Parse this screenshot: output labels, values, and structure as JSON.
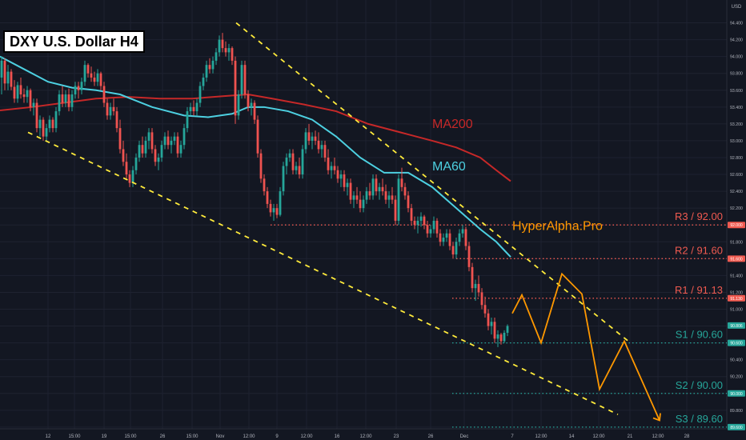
{
  "chart_data": {
    "type": "candlestick",
    "title": "DXY U.S. Dollar H4",
    "currency": "USD",
    "brand": "HyperAlpha.Pro",
    "y_range": [
      89.58,
      94.5
    ],
    "y_ticks": [
      "94.400",
      "94.200",
      "94.000",
      "93.800",
      "93.600",
      "93.400",
      "93.200",
      "93.000",
      "92.800",
      "92.600",
      "92.400",
      "92.200",
      "92.000",
      "91.800",
      "91.600",
      "91.400",
      "91.200",
      "91.000",
      "90.800",
      "90.600",
      "90.400",
      "90.200",
      "90.000",
      "89.800",
      "89.600"
    ],
    "x_labels": [
      "12",
      "15:00",
      "19",
      "15:00",
      "26",
      "15:00",
      "Nov",
      "12:00",
      "9",
      "12:00",
      "16",
      "12:00",
      "23",
      "26",
      "Dec",
      "7",
      "12:00",
      "14",
      "12:00",
      "21",
      "12:00",
      "28"
    ],
    "current_price": "90.806",
    "moving_averages": [
      {
        "name": "MA200",
        "color": "#c62828",
        "points": [
          [
            0,
            93.36
          ],
          [
            40,
            93.4
          ],
          [
            80,
            93.45
          ],
          [
            120,
            93.5
          ],
          [
            160,
            93.52
          ],
          [
            200,
            93.5
          ],
          [
            240,
            93.5
          ],
          [
            280,
            93.53
          ],
          [
            310,
            93.55
          ],
          [
            340,
            93.5
          ],
          [
            380,
            93.43
          ],
          [
            420,
            93.35
          ],
          [
            460,
            93.2
          ],
          [
            500,
            93.1
          ],
          [
            540,
            93.0
          ],
          [
            570,
            92.92
          ],
          [
            600,
            92.8
          ],
          [
            620,
            92.65
          ],
          [
            638,
            92.52
          ]
        ]
      },
      {
        "name": "MA60",
        "color": "#4dd0e1",
        "points": [
          [
            0,
            94.0
          ],
          [
            30,
            93.85
          ],
          [
            60,
            93.7
          ],
          [
            90,
            93.63
          ],
          [
            120,
            93.6
          ],
          [
            150,
            93.55
          ],
          [
            190,
            93.4
          ],
          [
            230,
            93.3
          ],
          [
            260,
            93.28
          ],
          [
            290,
            93.32
          ],
          [
            310,
            93.4
          ],
          [
            330,
            93.4
          ],
          [
            360,
            93.35
          ],
          [
            390,
            93.25
          ],
          [
            420,
            93.05
          ],
          [
            450,
            92.8
          ],
          [
            480,
            92.62
          ],
          [
            510,
            92.62
          ],
          [
            540,
            92.45
          ],
          [
            570,
            92.2
          ],
          [
            600,
            91.95
          ],
          [
            620,
            91.8
          ],
          [
            638,
            91.62
          ]
        ]
      }
    ],
    "levels": [
      {
        "label": "R3 / 92.00",
        "value": 92.0,
        "color": "#f05a50",
        "tag": "92.000",
        "x_start": 338
      },
      {
        "label": "R2 / 91.60",
        "value": 91.6,
        "color": "#f05a50",
        "tag": "91.600",
        "x_start": 570
      },
      {
        "label": "R1 / 91.13",
        "value": 91.13,
        "color": "#f05a50",
        "tag": "91.130",
        "x_start": 565
      },
      {
        "label": "S1 / 90.60",
        "value": 90.6,
        "color": "#26a69a",
        "tag": "90.600",
        "x_start": 565
      },
      {
        "label": "S2 / 90.00",
        "value": 90.0,
        "color": "#26a69a",
        "tag": "90.000",
        "x_start": 565
      },
      {
        "label": "S3 / 89.60",
        "value": 89.6,
        "color": "#26a69a",
        "tag": "89.600",
        "x_start": 565
      }
    ],
    "channel_lines": [
      {
        "from": [
          295,
          94.4
        ],
        "to": [
          785,
          90.62
        ]
      },
      {
        "from": [
          35,
          93.1
        ],
        "to": [
          772,
          89.75
        ]
      }
    ],
    "projection": [
      [
        640,
        90.95
      ],
      [
        652,
        91.17
      ],
      [
        676,
        90.6
      ],
      [
        702,
        91.42
      ],
      [
        727,
        91.18
      ],
      [
        749,
        90.05
      ],
      [
        780,
        90.62
      ],
      [
        824,
        89.68
      ]
    ],
    "candles": [
      [
        2,
        93.75,
        94.0,
        93.55,
        93.95
      ],
      [
        6,
        93.95,
        93.98,
        93.6,
        93.68
      ],
      [
        10,
        93.68,
        93.9,
        93.6,
        93.82
      ],
      [
        14,
        93.82,
        93.85,
        93.6,
        93.64
      ],
      [
        18,
        93.64,
        93.72,
        93.45,
        93.5
      ],
      [
        22,
        93.5,
        93.7,
        93.45,
        93.66
      ],
      [
        26,
        93.66,
        93.75,
        93.5,
        93.55
      ],
      [
        30,
        93.55,
        93.62,
        93.45,
        93.52
      ],
      [
        34,
        93.52,
        93.65,
        93.45,
        93.6
      ],
      [
        38,
        93.6,
        93.62,
        93.35,
        93.4
      ],
      [
        42,
        93.4,
        93.5,
        93.3,
        93.45
      ],
      [
        46,
        93.45,
        93.5,
        93.1,
        93.15
      ],
      [
        50,
        93.15,
        93.3,
        93.05,
        93.25
      ],
      [
        54,
        93.25,
        93.28,
        93.0,
        93.05
      ],
      [
        58,
        93.05,
        93.2,
        93.0,
        93.15
      ],
      [
        62,
        93.15,
        93.3,
        93.1,
        93.25
      ],
      [
        66,
        93.25,
        93.28,
        93.1,
        93.15
      ],
      [
        70,
        93.15,
        93.4,
        93.1,
        93.35
      ],
      [
        74,
        93.35,
        93.6,
        93.3,
        93.55
      ],
      [
        78,
        93.55,
        93.65,
        93.4,
        93.45
      ],
      [
        82,
        93.45,
        93.6,
        93.4,
        93.55
      ],
      [
        86,
        93.55,
        93.62,
        93.35,
        93.4
      ],
      [
        90,
        93.4,
        93.6,
        93.35,
        93.55
      ],
      [
        94,
        93.55,
        93.7,
        93.5,
        93.65
      ],
      [
        98,
        93.65,
        93.7,
        93.5,
        93.6
      ],
      [
        102,
        93.6,
        93.75,
        93.55,
        93.7
      ],
      [
        106,
        93.7,
        93.95,
        93.65,
        93.9
      ],
      [
        110,
        93.9,
        93.92,
        93.75,
        93.8
      ],
      [
        114,
        93.8,
        93.88,
        93.7,
        93.75
      ],
      [
        118,
        93.75,
        93.82,
        93.65,
        93.7
      ],
      [
        122,
        93.7,
        93.85,
        93.65,
        93.8
      ],
      [
        126,
        93.8,
        93.82,
        93.6,
        93.65
      ],
      [
        130,
        93.65,
        93.7,
        93.4,
        93.45
      ],
      [
        134,
        93.45,
        93.5,
        93.25,
        93.3
      ],
      [
        138,
        93.3,
        93.45,
        93.25,
        93.4
      ],
      [
        142,
        93.4,
        93.5,
        93.3,
        93.35
      ],
      [
        146,
        93.35,
        93.4,
        93.1,
        93.15
      ],
      [
        150,
        93.15,
        93.25,
        92.85,
        92.9
      ],
      [
        154,
        92.9,
        93.0,
        92.7,
        92.75
      ],
      [
        158,
        92.75,
        92.85,
        92.55,
        92.6
      ],
      [
        162,
        92.6,
        92.65,
        92.45,
        92.5
      ],
      [
        166,
        92.5,
        92.7,
        92.45,
        92.65
      ],
      [
        170,
        92.65,
        92.85,
        92.6,
        92.8
      ],
      [
        174,
        92.8,
        93.0,
        92.75,
        92.95
      ],
      [
        178,
        92.95,
        93.05,
        92.8,
        92.85
      ],
      [
        182,
        92.85,
        93.05,
        92.8,
        93.0
      ],
      [
        186,
        93.0,
        93.15,
        92.9,
        93.1
      ],
      [
        190,
        93.1,
        93.15,
        92.85,
        92.9
      ],
      [
        194,
        92.9,
        92.95,
        92.7,
        92.75
      ],
      [
        198,
        92.75,
        92.85,
        92.65,
        92.8
      ],
      [
        202,
        92.8,
        93.0,
        92.75,
        92.95
      ],
      [
        206,
        92.95,
        93.1,
        92.9,
        93.05
      ],
      [
        210,
        93.05,
        93.12,
        92.9,
        92.95
      ],
      [
        214,
        92.95,
        93.05,
        92.85,
        93.0
      ],
      [
        218,
        93.0,
        93.1,
        92.95,
        93.05
      ],
      [
        222,
        93.05,
        93.1,
        92.8,
        92.85
      ],
      [
        226,
        92.85,
        93.0,
        92.8,
        92.95
      ],
      [
        230,
        92.95,
        93.2,
        92.9,
        93.15
      ],
      [
        234,
        93.15,
        93.4,
        93.1,
        93.35
      ],
      [
        238,
        93.35,
        93.45,
        93.3,
        93.4
      ],
      [
        242,
        93.4,
        93.48,
        93.3,
        93.35
      ],
      [
        246,
        93.35,
        93.5,
        93.3,
        93.45
      ],
      [
        250,
        93.45,
        93.7,
        93.4,
        93.65
      ],
      [
        254,
        93.65,
        93.8,
        93.6,
        93.75
      ],
      [
        258,
        93.75,
        93.95,
        93.7,
        93.9
      ],
      [
        262,
        93.9,
        93.98,
        93.8,
        93.85
      ],
      [
        266,
        93.85,
        94.0,
        93.8,
        93.95
      ],
      [
        270,
        93.95,
        94.1,
        93.9,
        94.05
      ],
      [
        274,
        94.05,
        94.25,
        94.0,
        94.2
      ],
      [
        278,
        94.2,
        94.28,
        94.05,
        94.1
      ],
      [
        282,
        94.1,
        94.18,
        94.0,
        94.05
      ],
      [
        286,
        94.05,
        94.15,
        93.95,
        94.1
      ],
      [
        290,
        94.1,
        94.12,
        93.9,
        93.95
      ],
      [
        294,
        93.95,
        94.0,
        93.2,
        93.3
      ],
      [
        298,
        93.3,
        93.6,
        93.25,
        93.55
      ],
      [
        302,
        93.55,
        93.95,
        93.5,
        93.9
      ],
      [
        306,
        93.9,
        93.95,
        93.5,
        93.55
      ],
      [
        310,
        93.55,
        93.6,
        93.35,
        93.4
      ],
      [
        314,
        93.4,
        93.5,
        93.3,
        93.45
      ],
      [
        318,
        93.45,
        93.48,
        93.2,
        93.25
      ],
      [
        322,
        93.25,
        93.3,
        92.8,
        92.85
      ],
      [
        326,
        92.85,
        92.9,
        92.5,
        92.55
      ],
      [
        330,
        92.55,
        92.6,
        92.35,
        92.4
      ],
      [
        334,
        92.4,
        92.45,
        92.2,
        92.25
      ],
      [
        338,
        92.25,
        92.3,
        92.1,
        92.15
      ],
      [
        342,
        92.15,
        92.25,
        92.05,
        92.2
      ],
      [
        346,
        92.2,
        92.25,
        92.08,
        92.12
      ],
      [
        350,
        92.12,
        92.45,
        92.1,
        92.4
      ],
      [
        354,
        92.4,
        92.75,
        92.35,
        92.7
      ],
      [
        358,
        92.7,
        92.85,
        92.6,
        92.8
      ],
      [
        362,
        92.8,
        92.9,
        92.75,
        92.85
      ],
      [
        366,
        92.85,
        92.9,
        92.6,
        92.65
      ],
      [
        370,
        92.65,
        92.75,
        92.6,
        92.7
      ],
      [
        374,
        92.7,
        92.8,
        92.55,
        92.6
      ],
      [
        378,
        92.6,
        92.95,
        92.55,
        92.9
      ],
      [
        382,
        92.9,
        93.15,
        92.85,
        93.1
      ],
      [
        386,
        93.1,
        93.2,
        92.95,
        93.0
      ],
      [
        390,
        93.0,
        93.1,
        92.9,
        93.05
      ],
      [
        394,
        93.05,
        93.12,
        92.95,
        93.0
      ],
      [
        398,
        93.0,
        93.1,
        92.85,
        92.9
      ],
      [
        402,
        92.9,
        93.0,
        92.8,
        92.95
      ],
      [
        406,
        92.95,
        93.0,
        92.75,
        92.8
      ],
      [
        410,
        92.8,
        92.9,
        92.6,
        92.65
      ],
      [
        414,
        92.65,
        92.75,
        92.55,
        92.7
      ],
      [
        418,
        92.7,
        92.8,
        92.6,
        92.65
      ],
      [
        422,
        92.65,
        92.7,
        92.5,
        92.55
      ],
      [
        426,
        92.55,
        92.65,
        92.45,
        92.6
      ],
      [
        430,
        92.6,
        92.65,
        92.4,
        92.45
      ],
      [
        434,
        92.45,
        92.55,
        92.35,
        92.5
      ],
      [
        438,
        92.5,
        92.55,
        92.25,
        92.3
      ],
      [
        442,
        92.3,
        92.4,
        92.2,
        92.35
      ],
      [
        446,
        92.35,
        92.45,
        92.25,
        92.3
      ],
      [
        450,
        92.3,
        92.4,
        92.15,
        92.2
      ],
      [
        454,
        92.2,
        92.35,
        92.15,
        92.3
      ],
      [
        458,
        92.3,
        92.45,
        92.25,
        92.4
      ],
      [
        462,
        92.4,
        92.5,
        92.3,
        92.35
      ],
      [
        466,
        92.35,
        92.6,
        92.3,
        92.55
      ],
      [
        470,
        92.55,
        92.6,
        92.35,
        92.4
      ],
      [
        474,
        92.4,
        92.5,
        92.3,
        92.45
      ],
      [
        478,
        92.45,
        92.55,
        92.35,
        92.4
      ],
      [
        482,
        92.4,
        92.48,
        92.25,
        92.3
      ],
      [
        486,
        92.3,
        92.4,
        92.2,
        92.35
      ],
      [
        490,
        92.35,
        92.45,
        92.25,
        92.3
      ],
      [
        494,
        92.3,
        92.35,
        92.0,
        92.05
      ],
      [
        498,
        92.05,
        92.6,
        92.0,
        92.55
      ],
      [
        502,
        92.55,
        92.68,
        92.4,
        92.45
      ],
      [
        506,
        92.45,
        92.5,
        92.3,
        92.35
      ],
      [
        510,
        92.35,
        92.4,
        92.15,
        92.2
      ],
      [
        514,
        92.2,
        92.25,
        92.0,
        92.05
      ],
      [
        518,
        92.05,
        92.1,
        91.95,
        92.0
      ],
      [
        522,
        92.0,
        92.1,
        91.9,
        92.05
      ],
      [
        526,
        92.05,
        92.15,
        91.98,
        92.1
      ],
      [
        530,
        92.1,
        92.12,
        91.95,
        92.0
      ],
      [
        534,
        92.0,
        92.05,
        91.85,
        91.9
      ],
      [
        538,
        91.9,
        92.0,
        91.85,
        91.95
      ],
      [
        542,
        91.95,
        92.1,
        91.9,
        92.05
      ],
      [
        546,
        92.05,
        92.08,
        91.85,
        91.9
      ],
      [
        550,
        91.9,
        91.95,
        91.75,
        91.8
      ],
      [
        554,
        91.8,
        91.9,
        91.75,
        91.85
      ],
      [
        558,
        91.85,
        91.95,
        91.8,
        91.9
      ],
      [
        562,
        91.9,
        91.95,
        91.7,
        91.75
      ],
      [
        566,
        91.75,
        91.8,
        91.6,
        91.65
      ],
      [
        570,
        91.65,
        91.85,
        91.6,
        91.8
      ],
      [
        574,
        91.8,
        91.95,
        91.75,
        91.9
      ],
      [
        578,
        91.9,
        92.0,
        91.85,
        91.95
      ],
      [
        582,
        91.95,
        91.98,
        91.7,
        91.75
      ],
      [
        586,
        91.75,
        91.8,
        91.45,
        91.5
      ],
      [
        590,
        91.5,
        91.55,
        91.2,
        91.25
      ],
      [
        594,
        91.25,
        91.35,
        91.1,
        91.3
      ],
      [
        598,
        91.3,
        91.4,
        91.15,
        91.2
      ],
      [
        602,
        91.2,
        91.25,
        91.0,
        91.05
      ],
      [
        606,
        91.05,
        91.15,
        90.9,
        90.95
      ],
      [
        610,
        90.95,
        91.0,
        90.75,
        90.8
      ],
      [
        614,
        90.8,
        90.9,
        90.7,
        90.85
      ],
      [
        618,
        90.85,
        90.9,
        90.6,
        90.65
      ],
      [
        622,
        90.65,
        90.75,
        90.55,
        90.7
      ],
      [
        626,
        90.7,
        90.72,
        90.58,
        90.62
      ],
      [
        630,
        90.62,
        90.75,
        90.6,
        90.72
      ],
      [
        634,
        90.72,
        90.82,
        90.68,
        90.8
      ]
    ]
  }
}
